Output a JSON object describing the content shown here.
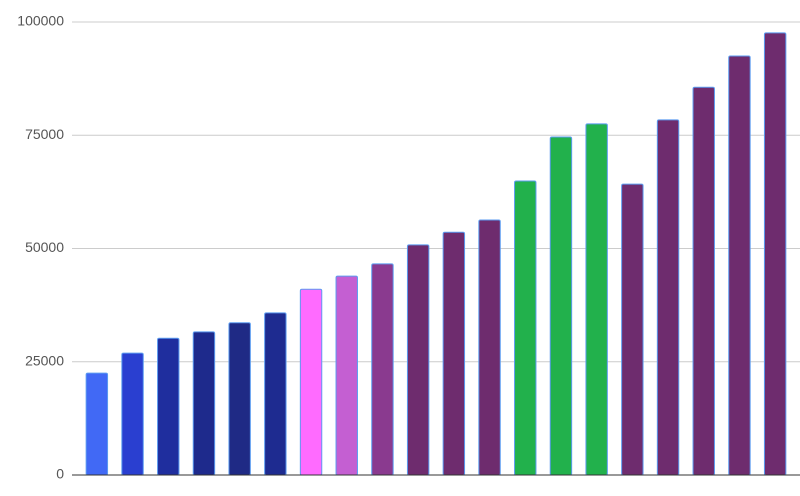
{
  "chart_data": {
    "type": "bar",
    "categories": [
      null,
      null,
      null,
      null,
      null,
      null,
      null,
      null,
      null,
      null,
      null,
      null,
      null,
      null,
      null,
      null,
      null,
      null,
      null,
      null
    ],
    "values": [
      22500,
      26900,
      30200,
      31600,
      33600,
      35800,
      41000,
      43900,
      46600,
      50800,
      53600,
      56300,
      64900,
      74600,
      77500,
      64200,
      78400,
      85600,
      92500,
      97600
    ],
    "colors": [
      "#4169f5",
      "#2a3fd0",
      "#1f2e9e",
      "#1e2a8c",
      "#1f2a85",
      "#1e2b90",
      "#ff6bff",
      "#c45fd2",
      "#8a3a8f",
      "#6e2c6e",
      "#6e2c6e",
      "#6e2c6e",
      "#22b14c",
      "#22b14c",
      "#22b14c",
      "#6e2c6e",
      "#6e2c6e",
      "#6e2c6e",
      "#6e2c6e",
      "#6e2c6e"
    ],
    "ylim": [
      0,
      100000
    ],
    "yticks": [
      0,
      25000,
      50000,
      75000,
      100000
    ],
    "grid": true
  }
}
